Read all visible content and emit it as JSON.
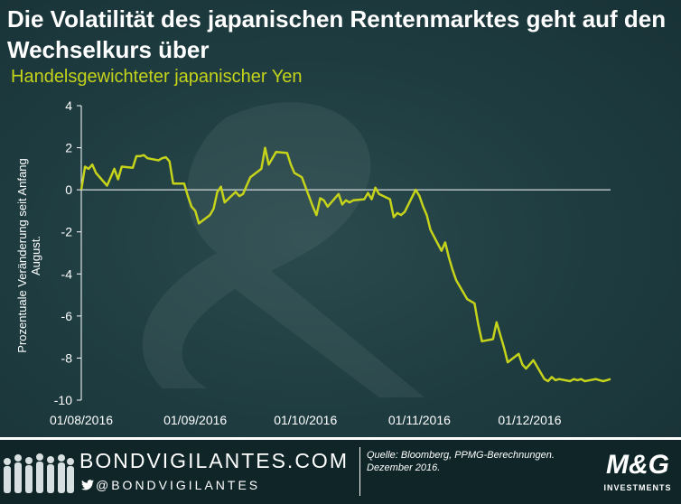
{
  "header": {
    "title": "Die Volatilität des japanischen Rentenmarktes geht auf den Wechselkurs über",
    "subtitle": "Handelsgewichteter japanischer Yen"
  },
  "chart_data": {
    "type": "line",
    "ylabel": "Prozentuale Veränderung seit Anfang August.",
    "ylim": [
      -10,
      4
    ],
    "yticks": [
      4,
      2,
      0,
      -2,
      -4,
      -6,
      -8,
      -10
    ],
    "xlim": [
      "2016-08-01",
      "2016-12-23"
    ],
    "xticks": [
      "01/08/2016",
      "01/09/2016",
      "01/10/2016",
      "01/11/2016",
      "01/12/2016"
    ],
    "grid": false,
    "series": [
      {
        "color": "#c5d31a",
        "x": [
          "2016-08-01",
          "2016-08-02",
          "2016-08-03",
          "2016-08-04",
          "2016-08-05",
          "2016-08-08",
          "2016-08-09",
          "2016-08-10",
          "2016-08-11",
          "2016-08-12",
          "2016-08-15",
          "2016-08-16",
          "2016-08-17",
          "2016-08-18",
          "2016-08-19",
          "2016-08-22",
          "2016-08-23",
          "2016-08-24",
          "2016-08-25",
          "2016-08-26",
          "2016-08-29",
          "2016-08-30",
          "2016-08-31",
          "2016-09-01",
          "2016-09-02",
          "2016-09-05",
          "2016-09-06",
          "2016-09-07",
          "2016-09-08",
          "2016-09-09",
          "2016-09-12",
          "2016-09-13",
          "2016-09-14",
          "2016-09-15",
          "2016-09-16",
          "2016-09-19",
          "2016-09-20",
          "2016-09-21",
          "2016-09-22",
          "2016-09-23",
          "2016-09-26",
          "2016-09-27",
          "2016-09-28",
          "2016-09-29",
          "2016-09-30",
          "2016-10-03",
          "2016-10-04",
          "2016-10-05",
          "2016-10-06",
          "2016-10-07",
          "2016-10-10",
          "2016-10-11",
          "2016-10-12",
          "2016-10-13",
          "2016-10-14",
          "2016-10-17",
          "2016-10-18",
          "2016-10-19",
          "2016-10-20",
          "2016-10-21",
          "2016-10-24",
          "2016-10-25",
          "2016-10-26",
          "2016-10-27",
          "2016-10-28",
          "2016-10-31",
          "2016-11-01",
          "2016-11-02",
          "2016-11-03",
          "2016-11-04",
          "2016-11-07",
          "2016-11-08",
          "2016-11-09",
          "2016-11-10",
          "2016-11-11",
          "2016-11-14",
          "2016-11-15",
          "2016-11-16",
          "2016-11-17",
          "2016-11-18",
          "2016-11-21",
          "2016-11-22",
          "2016-11-23",
          "2016-11-24",
          "2016-11-25",
          "2016-11-28",
          "2016-11-29",
          "2016-11-30",
          "2016-12-01",
          "2016-12-02",
          "2016-12-05",
          "2016-12-06",
          "2016-12-07",
          "2016-12-08",
          "2016-12-09",
          "2016-12-12",
          "2016-12-13",
          "2016-12-14",
          "2016-12-15",
          "2016-12-16",
          "2016-12-19",
          "2016-12-20",
          "2016-12-21",
          "2016-12-22",
          "2016-12-23"
        ],
        "y": [
          0.0,
          1.1,
          1.0,
          1.2,
          0.8,
          0.2,
          0.6,
          1.0,
          0.5,
          1.1,
          1.05,
          1.6,
          1.6,
          1.65,
          1.5,
          1.4,
          1.5,
          1.55,
          1.35,
          0.3,
          0.3,
          -0.3,
          -0.8,
          -1.0,
          -1.6,
          -1.2,
          -0.9,
          -0.1,
          0.15,
          -0.6,
          -0.1,
          -0.3,
          -0.2,
          0.2,
          0.6,
          1.0,
          2.0,
          1.2,
          1.5,
          1.8,
          1.75,
          1.2,
          0.8,
          0.7,
          0.6,
          -0.8,
          -1.2,
          -0.4,
          -0.5,
          -0.8,
          -0.2,
          -0.7,
          -0.5,
          -0.6,
          -0.5,
          -0.45,
          -0.15,
          -0.45,
          0.1,
          -0.2,
          -0.45,
          -1.3,
          -1.1,
          -1.2,
          -1.05,
          0.0,
          -0.3,
          -0.8,
          -1.2,
          -1.9,
          -2.9,
          -2.5,
          -3.2,
          -3.8,
          -4.3,
          -5.2,
          -5.3,
          -5.4,
          -6.4,
          -7.2,
          -7.1,
          -6.3,
          -6.9,
          -7.5,
          -8.2,
          -7.8,
          -8.3,
          -8.5,
          -8.3,
          -8.1,
          -9.0,
          -9.1,
          -8.9,
          -9.05,
          -9.0,
          -9.1,
          -9.0,
          -9.05,
          -9.0,
          -9.1,
          -9.0,
          -9.05,
          -9.1,
          -9.05,
          -9.0
        ]
      }
    ]
  },
  "footer": {
    "brand": "BONDVIGILANTES.COM",
    "twitter": "@BONDVIGILANTES",
    "source": "Quelle: Bloomberg, PPMG-Berechnungen. Dezember 2016.",
    "logo": "M&G",
    "logo_sub": "INVESTMENTS"
  }
}
